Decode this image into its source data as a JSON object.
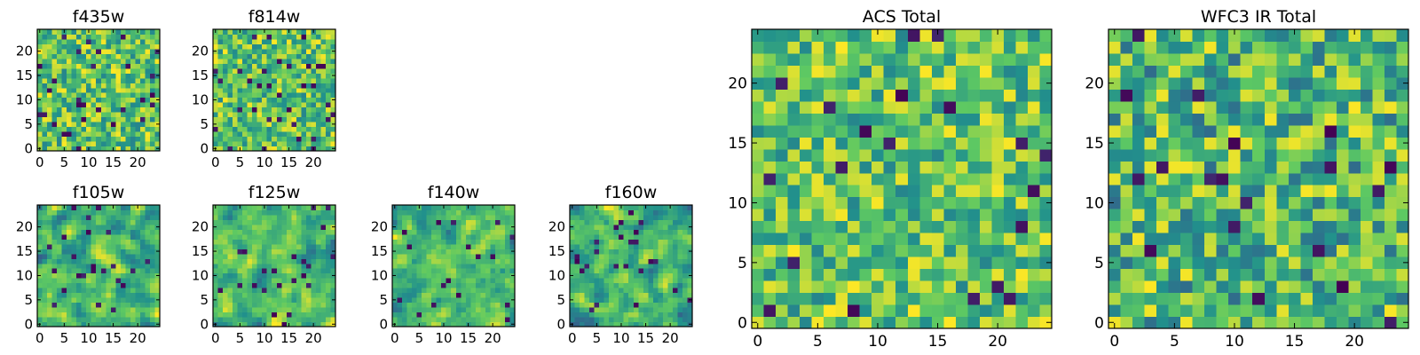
{
  "figure": {
    "colormap": "viridis",
    "colormap_stops": [
      "#440154",
      "#3b528b",
      "#21918c",
      "#5ec962",
      "#fde725"
    ],
    "background": "#ffffff"
  },
  "chart_data": [
    {
      "type": "heatmap",
      "title": "f435w",
      "grid_size": 25,
      "xlim": [
        0,
        24
      ],
      "ylim": [
        0,
        24
      ],
      "xticks": [
        0,
        5,
        10,
        15,
        20
      ],
      "yticks": [
        0,
        5,
        10,
        15,
        20
      ],
      "seed": 435,
      "value_range": [
        0.45,
        1.0
      ],
      "dark_fraction": 0.035,
      "smoothing": 0
    },
    {
      "type": "heatmap",
      "title": "f814w",
      "grid_size": 25,
      "xlim": [
        0,
        24
      ],
      "ylim": [
        0,
        24
      ],
      "xticks": [
        0,
        5,
        10,
        15,
        20
      ],
      "yticks": [
        0,
        5,
        10,
        15,
        20
      ],
      "seed": 814,
      "value_range": [
        0.45,
        1.0
      ],
      "dark_fraction": 0.04,
      "smoothing": 0
    },
    {
      "type": "heatmap",
      "title": "f105w",
      "grid_size": 25,
      "xlim": [
        0,
        24
      ],
      "ylim": [
        0,
        24
      ],
      "xticks": [
        0,
        5,
        10,
        15,
        20
      ],
      "yticks": [
        0,
        5,
        10,
        15,
        20
      ],
      "seed": 105,
      "value_range": [
        0.3,
        1.0
      ],
      "dark_fraction": 0.03,
      "smoothing": 1
    },
    {
      "type": "heatmap",
      "title": "f125w",
      "grid_size": 25,
      "xlim": [
        0,
        24
      ],
      "ylim": [
        0,
        24
      ],
      "xticks": [
        0,
        5,
        10,
        15,
        20
      ],
      "yticks": [
        0,
        5,
        10,
        15,
        20
      ],
      "seed": 125,
      "value_range": [
        0.35,
        1.0
      ],
      "dark_fraction": 0.03,
      "smoothing": 1
    },
    {
      "type": "heatmap",
      "title": "f140w",
      "grid_size": 25,
      "xlim": [
        0,
        24
      ],
      "ylim": [
        0,
        24
      ],
      "xticks": [
        0,
        5,
        10,
        15,
        20
      ],
      "yticks": [
        0,
        5,
        10,
        15,
        20
      ],
      "seed": 140,
      "value_range": [
        0.35,
        1.0
      ],
      "dark_fraction": 0.03,
      "smoothing": 1
    },
    {
      "type": "heatmap",
      "title": "f160w",
      "grid_size": 25,
      "xlim": [
        0,
        24
      ],
      "ylim": [
        0,
        24
      ],
      "xticks": [
        0,
        5,
        10,
        15,
        20
      ],
      "yticks": [
        0,
        5,
        10,
        15,
        20
      ],
      "seed": 160,
      "value_range": [
        0.3,
        1.0
      ],
      "dark_fraction": 0.035,
      "smoothing": 1
    },
    {
      "type": "heatmap",
      "title": "ACS Total",
      "grid_size": 25,
      "xlim": [
        0,
        24
      ],
      "ylim": [
        0,
        24
      ],
      "xticks": [
        0,
        5,
        10,
        15,
        20
      ],
      "yticks": [
        0,
        5,
        10,
        15,
        20
      ],
      "seed": 7,
      "value_range": [
        0.45,
        1.0
      ],
      "dark_fraction": 0.025,
      "smoothing": 0
    },
    {
      "type": "heatmap",
      "title": "WFC3 IR Total",
      "grid_size": 25,
      "xlim": [
        0,
        24
      ],
      "ylim": [
        0,
        24
      ],
      "xticks": [
        0,
        5,
        10,
        15,
        20
      ],
      "yticks": [
        0,
        5,
        10,
        15,
        20
      ],
      "seed": 3,
      "value_range": [
        0.35,
        1.0
      ],
      "dark_fraction": 0.03,
      "smoothing": 0
    }
  ]
}
